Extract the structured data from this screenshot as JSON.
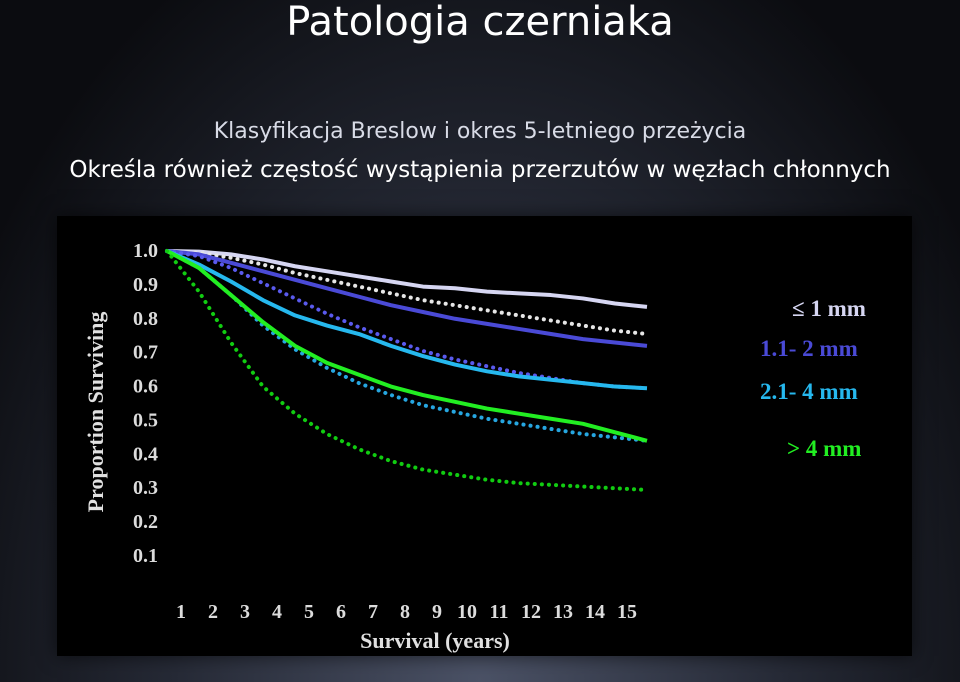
{
  "slide": {
    "title": "Patologia czerniaka",
    "bullets": [
      "Klasyfikacja Breslow i okres 5-letniego przeżycia",
      "Określa również częstość wystąpienia przerzutów w węzłach chłonnych"
    ]
  },
  "chart_data": {
    "type": "line",
    "title": "",
    "xlabel": "Survival (years)",
    "ylabel": "Proportion Surviving",
    "xlim": [
      0,
      15
    ],
    "ylim": [
      0.1,
      1.0
    ],
    "x_ticks": [
      "1",
      "2",
      "3",
      "4",
      "5",
      "6",
      "7",
      "8",
      "9",
      "10",
      "11",
      "12",
      "13",
      "14",
      "15"
    ],
    "y_ticks": [
      "1.0",
      "0.9",
      "0.8",
      "0.7",
      "0.6",
      "0.5",
      "0.4",
      "0.3",
      "0.2",
      "0.1"
    ],
    "x": [
      0,
      1,
      2,
      3,
      4,
      5,
      6,
      7,
      8,
      9,
      10,
      11,
      12,
      13,
      14,
      15
    ],
    "grid": false,
    "legend": "right, inline labels",
    "series": [
      {
        "name": "≤ 1 mm",
        "group": "≤ 1 mm",
        "style": "solid",
        "color": "#d6d6f2",
        "values": [
          1.0,
          0.998,
          0.99,
          0.975,
          0.955,
          0.94,
          0.925,
          0.91,
          0.895,
          0.89,
          0.88,
          0.875,
          0.87,
          0.86,
          0.845,
          0.835
        ]
      },
      {
        "group": "≤ 1 mm",
        "style": "dotted",
        "color": "#e6e6e6",
        "values": [
          1.0,
          0.995,
          0.98,
          0.96,
          0.935,
          0.915,
          0.895,
          0.875,
          0.855,
          0.84,
          0.825,
          0.81,
          0.795,
          0.78,
          0.765,
          0.755
        ]
      },
      {
        "name": "1.1- 2 mm",
        "group": "1.1- 2 mm",
        "style": "solid",
        "color": "#4a4ad6",
        "values": [
          1.0,
          0.99,
          0.965,
          0.94,
          0.915,
          0.89,
          0.865,
          0.84,
          0.82,
          0.8,
          0.785,
          0.77,
          0.755,
          0.74,
          0.73,
          0.72
        ]
      },
      {
        "group": "1.1- 2 mm",
        "style": "dotted",
        "color": "#5a5aee",
        "values": [
          1.0,
          0.985,
          0.95,
          0.905,
          0.86,
          0.815,
          0.775,
          0.74,
          0.705,
          0.68,
          0.66,
          0.64,
          0.625,
          0.61,
          0.6,
          0.595
        ]
      },
      {
        "name": "2.1- 4 mm",
        "group": "2.1- 4 mm",
        "style": "solid",
        "color": "#26b8ee",
        "values": [
          1.0,
          0.96,
          0.91,
          0.855,
          0.81,
          0.78,
          0.755,
          0.72,
          0.69,
          0.665,
          0.645,
          0.63,
          0.62,
          0.61,
          0.6,
          0.595
        ]
      },
      {
        "group": "2.1- 4 mm",
        "style": "dotted",
        "color": "#26a6e0",
        "values": [
          1.0,
          0.95,
          0.87,
          0.78,
          0.71,
          0.655,
          0.61,
          0.575,
          0.545,
          0.525,
          0.505,
          0.49,
          0.475,
          0.46,
          0.45,
          0.44
        ]
      },
      {
        "name": "> 4 mm",
        "group": "> 4 mm",
        "style": "solid",
        "color": "#22ee22",
        "values": [
          1.0,
          0.95,
          0.87,
          0.79,
          0.72,
          0.67,
          0.635,
          0.6,
          0.575,
          0.555,
          0.535,
          0.52,
          0.505,
          0.49,
          0.465,
          0.44
        ]
      },
      {
        "group": "> 4 mm",
        "style": "dotted",
        "color": "#11cc11",
        "values": [
          1.0,
          0.88,
          0.73,
          0.6,
          0.52,
          0.46,
          0.415,
          0.38,
          0.355,
          0.34,
          0.325,
          0.315,
          0.31,
          0.305,
          0.3,
          0.295
        ]
      }
    ],
    "annotations": [
      {
        "text": "≤ 1 mm",
        "color": "#d6d6f2"
      },
      {
        "text": "1.1- 2 mm",
        "color": "#4a4ad6"
      },
      {
        "text": "2.1- 4 mm",
        "color": "#26b8ee"
      },
      {
        "text": "> 4 mm",
        "color": "#22ee22"
      }
    ]
  }
}
